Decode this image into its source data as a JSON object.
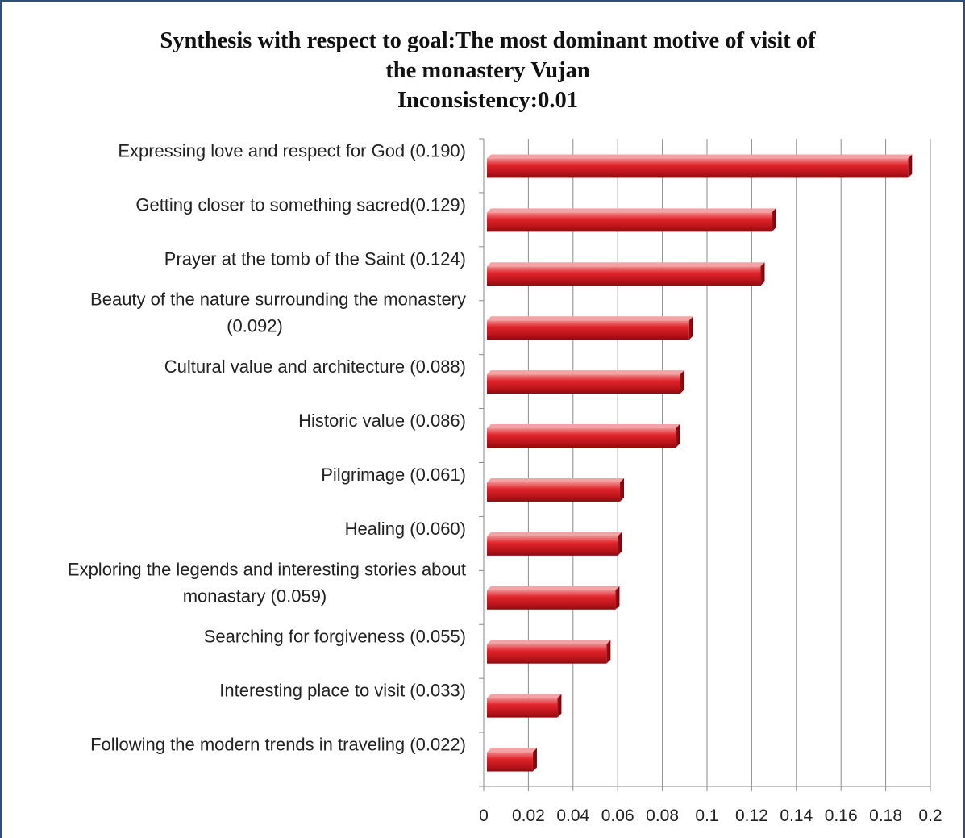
{
  "chart_data": {
    "type": "bar",
    "orientation": "horizontal",
    "title_lines": [
      "Synthesis with respect to goal:The most dominant motive of visit of",
      "the monastery Vujan",
      "Inconsistency:0.01"
    ],
    "categories": [
      [
        "Expressing love and respect for God (0.190)"
      ],
      [
        "Getting closer to something sacred(0.129)"
      ],
      [
        "Prayer at the tomb of the Saint (0.124)"
      ],
      [
        "Beauty of the nature surrounding the monastery",
        "(0.092)"
      ],
      [
        "Cultural value and architecture (0.088)"
      ],
      [
        "Historic value (0.086)"
      ],
      [
        "Pilgrimage (0.061)"
      ],
      [
        "Healing (0.060)"
      ],
      [
        "Exploring the legends and interesting stories about",
        "monastary (0.059)"
      ],
      [
        "Searching for forgiveness (0.055)"
      ],
      [
        "Interesting place to visit (0.033)"
      ],
      [
        "Following the modern trends in traveling (0.022)"
      ]
    ],
    "values": [
      0.19,
      0.129,
      0.124,
      0.092,
      0.088,
      0.086,
      0.061,
      0.06,
      0.059,
      0.055,
      0.033,
      0.022
    ],
    "xlim": [
      0,
      0.2
    ],
    "xticks": [
      "0",
      "0.02",
      "0.04",
      "0.06",
      "0.08",
      "0.1",
      "0.12",
      "0.14",
      "0.16",
      "0.18",
      "0.2"
    ],
    "grid": "vertical",
    "bar_color": "#c0161d",
    "xlabel": "",
    "ylabel": ""
  }
}
